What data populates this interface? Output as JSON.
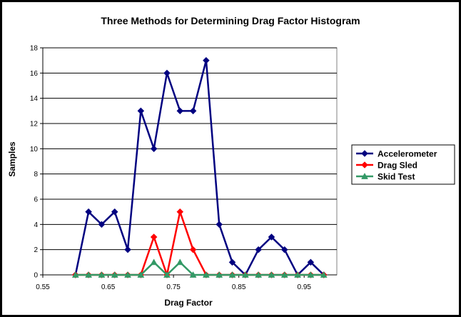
{
  "chart_data": {
    "type": "line",
    "title": "Three Methods for Determining Drag Factor Histogram",
    "xlabel": "Drag Factor",
    "ylabel": "Samples",
    "xlim": [
      0.55,
      1.0
    ],
    "ylim": [
      0,
      18
    ],
    "x_ticks": [
      0.55,
      0.65,
      0.75,
      0.85,
      0.95
    ],
    "x_tick_labels": [
      "0.55",
      "0.65",
      "0.75",
      "0.85",
      "0.95"
    ],
    "y_ticks": [
      0,
      2,
      4,
      6,
      8,
      10,
      12,
      14,
      16,
      18
    ],
    "y_tick_labels": [
      "0",
      "2",
      "4",
      "6",
      "8",
      "10",
      "12",
      "14",
      "16",
      "18"
    ],
    "grid": "horizontal",
    "legend_position": "right",
    "x": [
      0.6,
      0.62,
      0.64,
      0.66,
      0.68,
      0.7,
      0.72,
      0.74,
      0.76,
      0.78,
      0.8,
      0.82,
      0.84,
      0.86,
      0.88,
      0.9,
      0.92,
      0.94,
      0.96,
      0.98
    ],
    "series": [
      {
        "name": "Accelerometer",
        "color": "#000080",
        "marker": "diamond",
        "values": [
          0,
          5,
          4,
          5,
          2,
          13,
          10,
          16,
          13,
          13,
          17,
          4,
          1,
          0,
          2,
          3,
          2,
          0,
          1,
          0
        ]
      },
      {
        "name": "Drag Sled",
        "color": "#FF0000",
        "marker": "diamond",
        "values": [
          0,
          0,
          0,
          0,
          0,
          0,
          3,
          0,
          5,
          2,
          0,
          0,
          0,
          0,
          0,
          0,
          0,
          0,
          0,
          0
        ]
      },
      {
        "name": "Skid Test",
        "color": "#339966",
        "marker": "triangle",
        "values": [
          0,
          0,
          0,
          0,
          0,
          0,
          1,
          0,
          1,
          0,
          0,
          0,
          0,
          0,
          0,
          0,
          0,
          0,
          0,
          0
        ]
      }
    ]
  }
}
